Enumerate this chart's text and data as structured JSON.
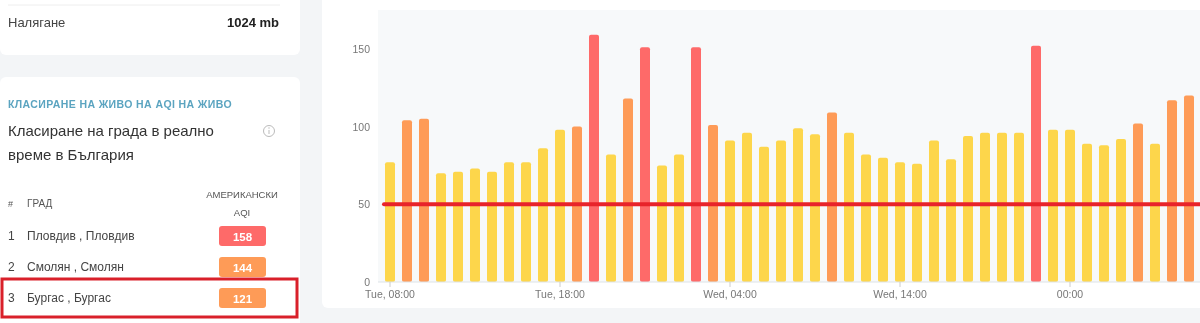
{
  "chart_data": [
    {
      "type": "other",
      "title": "Класиране на града в реално време в България",
      "subtitle": "КЛАСИРАНЕ НА ЖИВО НА AQI НА ЖИВО",
      "annotations": [
        "Налягане",
        "1024 mb",
        "#",
        "ГРАД",
        "АМЕРИКАНСКИ AQI",
        "1",
        "2",
        "3",
        "Пловдив , Пловдив",
        "Смолян , Смолян",
        "Бургас , Бургас"
      ],
      "categories": [
        null,
        null,
        null
      ],
      "values": [
        158,
        144,
        121
      ],
      "colors": [
        "#fe6a69",
        "#fe9b57",
        "#fe9b57"
      ],
      "data_labels": true
    },
    {
      "type": "bar",
      "categories": [
        "Tue, 08:00",
        null,
        null,
        null,
        null,
        null,
        null,
        null,
        null,
        null,
        "Tue, 18:00",
        null,
        null,
        null,
        null,
        null,
        null,
        null,
        null,
        null,
        "Wed, 04:00",
        null,
        null,
        null,
        null,
        null,
        null,
        null,
        null,
        null,
        "Wed, 14:00",
        null,
        null,
        null,
        null,
        null,
        null,
        null,
        null,
        null,
        "00:00",
        null,
        null,
        null,
        null,
        null,
        null,
        null
      ],
      "values": [
        77,
        104,
        105,
        70,
        71,
        73,
        71,
        77,
        77,
        86,
        98,
        100,
        159,
        82,
        118,
        151,
        75,
        82,
        151,
        101,
        91,
        96,
        87,
        91,
        99,
        95,
        109,
        96,
        82,
        80,
        77,
        76,
        91,
        79,
        94,
        96,
        96,
        96,
        152,
        98,
        98,
        89,
        88,
        92,
        102,
        89,
        117,
        120
      ],
      "colors": [
        "#fdd64b",
        "#fe9b57",
        "#fe9b57",
        "#fdd64b",
        "#fdd64b",
        "#fdd64b",
        "#fdd64b",
        "#fdd64b",
        "#fdd64b",
        "#fdd64b",
        "#fdd64b",
        "#fe9b57",
        "#fe6a69",
        "#fdd64b",
        "#fe9b57",
        "#fe6a69",
        "#fdd64b",
        "#fdd64b",
        "#fe6a69",
        "#fe9b57",
        "#fdd64b",
        "#fdd64b",
        "#fdd64b",
        "#fdd64b",
        "#fdd64b",
        "#fdd64b",
        "#fe9b57",
        "#fdd64b",
        "#fdd64b",
        "#fdd64b",
        "#fdd64b",
        "#fdd64b",
        "#fdd64b",
        "#fdd64b",
        "#fdd64b",
        "#fdd64b",
        "#fdd64b",
        "#fdd64b",
        "#fe6a69",
        "#fdd64b",
        "#fdd64b",
        "#fdd64b",
        "#fdd64b",
        "#fdd64b",
        "#fe9b57",
        "#fdd64b",
        "#fe9b57",
        "#fe9b57"
      ],
      "ylim": [
        0,
        175
      ],
      "yticks": [
        0,
        50,
        100,
        150
      ],
      "grid": false,
      "ref_lines": [
        {
          "axis": "y",
          "value": 50,
          "color": "#e8232a"
        }
      ]
    }
  ]
}
